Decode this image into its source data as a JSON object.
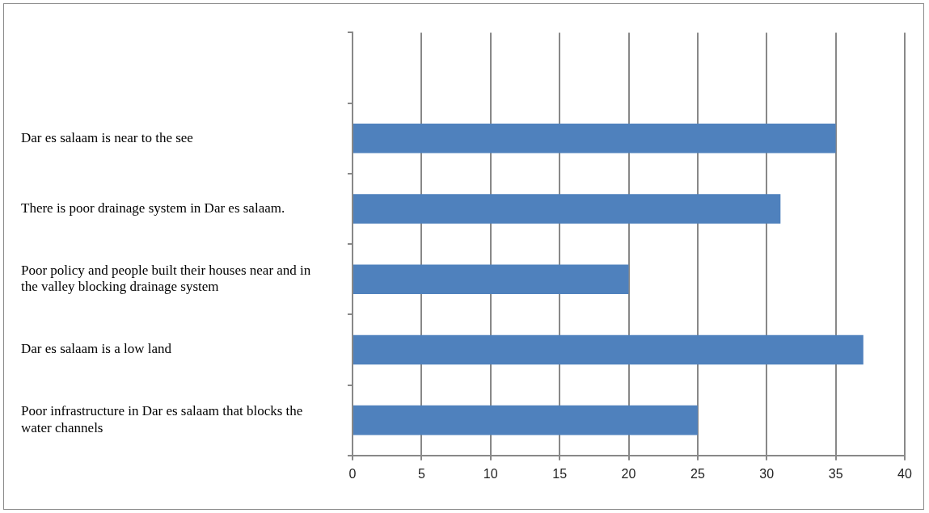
{
  "chart_data": {
    "type": "bar",
    "orientation": "horizontal",
    "categories": [
      null,
      "Dar es salaam is near to the see",
      "There is poor drainage system in Dar es salaam.",
      "Poor policy and people built their houses near and in the valley blocking drainage system",
      "Dar es salaam is a low land",
      "Poor infrastructure in Dar es salaam that blocks the water channels"
    ],
    "values": [
      null,
      35,
      31,
      20,
      37,
      25
    ],
    "color": "#4f81bd",
    "xlim": [
      0,
      40
    ],
    "xticks": [
      0,
      5,
      10,
      15,
      20,
      25,
      30,
      35,
      40
    ],
    "grid": "x",
    "legend": false
  }
}
